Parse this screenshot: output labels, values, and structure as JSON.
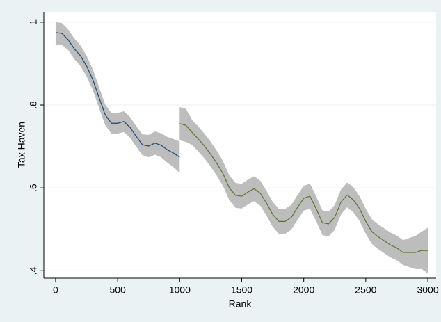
{
  "chart_data": {
    "type": "line",
    "x_label": "Rank",
    "y_label": "Tax Haven",
    "xlim": [
      -95,
      3067
    ],
    "ylim": [
      0.382,
      1.025
    ],
    "xticks": [
      0,
      500,
      1000,
      1500,
      2000,
      2500,
      3000
    ],
    "yticks": [
      {
        "value": 0.4,
        "label": ".4"
      },
      {
        "value": 0.6,
        "label": ".6"
      },
      {
        "value": 0.8,
        "label": ".8"
      },
      {
        "value": 1,
        "label": "1"
      }
    ],
    "grid": true,
    "band_color": "#bdbdbd",
    "series": [
      {
        "color": "#1a476f",
        "x": [
          0,
          50,
          100,
          150,
          200,
          250,
          300,
          350,
          400,
          450,
          500,
          550,
          600,
          650,
          700,
          750,
          800,
          850,
          900,
          950,
          1000
        ],
        "values": [
          0.975,
          0.973,
          0.958,
          0.936,
          0.919,
          0.894,
          0.861,
          0.818,
          0.776,
          0.756,
          0.756,
          0.76,
          0.746,
          0.724,
          0.704,
          0.701,
          0.708,
          0.703,
          0.692,
          0.684,
          0.674
        ],
        "upper": [
          1.0,
          0.998,
          0.983,
          0.961,
          0.944,
          0.919,
          0.886,
          0.843,
          0.801,
          0.781,
          0.781,
          0.785,
          0.771,
          0.749,
          0.729,
          0.728,
          0.736,
          0.732,
          0.723,
          0.718,
          0.712
        ],
        "lower": [
          0.945,
          0.945,
          0.933,
          0.911,
          0.894,
          0.869,
          0.836,
          0.793,
          0.751,
          0.731,
          0.731,
          0.735,
          0.721,
          0.699,
          0.679,
          0.674,
          0.68,
          0.674,
          0.661,
          0.65,
          0.636
        ]
      },
      {
        "color": "#55752f",
        "x": [
          1000,
          1050,
          1100,
          1150,
          1200,
          1250,
          1300,
          1350,
          1400,
          1450,
          1500,
          1550,
          1600,
          1650,
          1700,
          1750,
          1800,
          1850,
          1900,
          1950,
          2000,
          2050,
          2100,
          2150,
          2200,
          2250,
          2300,
          2350,
          2400,
          2450,
          2500,
          2550,
          2600,
          2650,
          2700,
          2750,
          2800,
          2850,
          2900,
          2950,
          3000
        ],
        "values": [
          0.755,
          0.751,
          0.734,
          0.718,
          0.701,
          0.681,
          0.659,
          0.634,
          0.6,
          0.582,
          0.58,
          0.59,
          0.598,
          0.587,
          0.563,
          0.536,
          0.519,
          0.519,
          0.529,
          0.553,
          0.575,
          0.58,
          0.55,
          0.516,
          0.513,
          0.529,
          0.566,
          0.583,
          0.571,
          0.55,
          0.519,
          0.494,
          0.482,
          0.472,
          0.462,
          0.455,
          0.444,
          0.444,
          0.444,
          0.449,
          0.449
        ],
        "upper": [
          0.795,
          0.791,
          0.764,
          0.748,
          0.731,
          0.711,
          0.689,
          0.664,
          0.63,
          0.612,
          0.61,
          0.62,
          0.628,
          0.617,
          0.593,
          0.566,
          0.549,
          0.549,
          0.559,
          0.583,
          0.605,
          0.61,
          0.58,
          0.546,
          0.543,
          0.559,
          0.596,
          0.613,
          0.601,
          0.58,
          0.549,
          0.524,
          0.512,
          0.502,
          0.492,
          0.485,
          0.474,
          0.479,
          0.484,
          0.494,
          0.504
        ],
        "lower": [
          0.715,
          0.711,
          0.704,
          0.688,
          0.671,
          0.651,
          0.629,
          0.604,
          0.57,
          0.552,
          0.55,
          0.56,
          0.568,
          0.557,
          0.533,
          0.506,
          0.489,
          0.489,
          0.499,
          0.523,
          0.545,
          0.55,
          0.52,
          0.486,
          0.483,
          0.499,
          0.536,
          0.553,
          0.541,
          0.52,
          0.489,
          0.464,
          0.452,
          0.442,
          0.432,
          0.425,
          0.414,
          0.409,
          0.404,
          0.404,
          0.394
        ]
      }
    ]
  }
}
